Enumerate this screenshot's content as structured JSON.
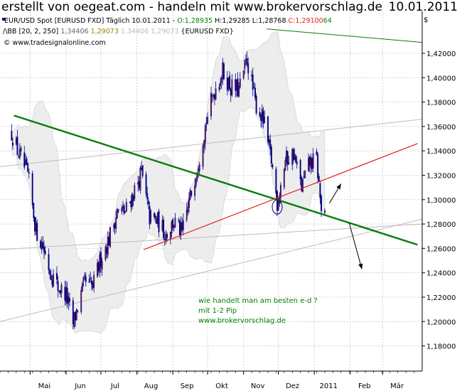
{
  "header": {
    "left": "erstellt von oegeat.com - handeln mit www.brokervorschlag.de",
    "right": "10.01.2011"
  },
  "legend": {
    "line1_symbol": "EUR/USD Spot [EURUSD FXD]  Täglich 10.01.2011 -",
    "line1_open": "O:1,28935",
    "line1_hl": "H:1,29285 L:1,28768",
    "line1_close": "C:1,29100",
    "line1_tail": "64",
    "line2_name": "BB [20, 2, 250]",
    "line2_upper": "1,34406",
    "line2_mid": "1,29073",
    "line2_lower": "1,34406 1,29073",
    "line2_src": "{EURUSD FXD}",
    "line3": "© www.tradesignalonline.com"
  },
  "currency_symbol": "$",
  "notes": [
    "wie handelt man am besten e-d ?",
    "mit 1-2 Pip",
    "www.brokervorschlag.de"
  ],
  "colors": {
    "trend_green": "#0a7a0a",
    "trend_red": "#e02020",
    "candle": "#000080",
    "band_fill": "#e8e8e8",
    "note_text": "#008000"
  },
  "chart_data": {
    "type": "candlestick",
    "title": "EUR/USD Spot [EURUSD FXD] Täglich",
    "x_axis": [
      "Mai",
      "Jun",
      "Jul",
      "Aug",
      "Sep",
      "Okt",
      "Nov",
      "Dez",
      "2011",
      "Feb",
      "Mär"
    ],
    "y_axis_ticks": [
      "1,42000",
      "1,40000",
      "1,38000",
      "1,36000",
      "1,34000",
      "1,32000",
      "1,30000",
      "1,28000",
      "1,26000",
      "1,24000",
      "1,22000",
      "1,20000",
      "1,18000"
    ],
    "ylim": [
      1.17,
      1.43
    ],
    "close_path": [
      [
        "2010-04-15",
        1.355
      ],
      [
        "2010-04-22",
        1.335
      ],
      [
        "2010-04-29",
        1.32
      ],
      [
        "2010-05-06",
        1.275
      ],
      [
        "2010-05-12",
        1.262
      ],
      [
        "2010-05-18",
        1.242
      ],
      [
        "2010-05-25",
        1.228
      ],
      [
        "2010-06-01",
        1.222
      ],
      [
        "2010-06-07",
        1.198
      ],
      [
        "2010-06-11",
        1.212
      ],
      [
        "2010-06-17",
        1.232
      ],
      [
        "2010-06-24",
        1.228
      ],
      [
        "2010-07-01",
        1.252
      ],
      [
        "2010-07-08",
        1.268
      ],
      [
        "2010-07-15",
        1.29
      ],
      [
        "2010-07-22",
        1.29
      ],
      [
        "2010-07-29",
        1.305
      ],
      [
        "2010-08-05",
        1.322
      ],
      [
        "2010-08-12",
        1.285
      ],
      [
        "2010-08-19",
        1.282
      ],
      [
        "2010-08-26",
        1.272
      ],
      [
        "2010-09-02",
        1.282
      ],
      [
        "2010-09-09",
        1.272
      ],
      [
        "2010-09-16",
        1.302
      ],
      [
        "2010-09-23",
        1.332
      ],
      [
        "2010-09-30",
        1.365
      ],
      [
        "2010-10-07",
        1.39
      ],
      [
        "2010-10-14",
        1.405
      ],
      [
        "2010-10-21",
        1.392
      ],
      [
        "2010-10-28",
        1.39
      ],
      [
        "2010-11-04",
        1.415
      ],
      [
        "2010-11-11",
        1.38
      ],
      [
        "2010-11-18",
        1.365
      ],
      [
        "2010-11-25",
        1.332
      ],
      [
        "2010-11-30",
        1.298
      ],
      [
        "2010-12-07",
        1.332
      ],
      [
        "2010-12-14",
        1.338
      ],
      [
        "2010-12-21",
        1.31
      ],
      [
        "2010-12-28",
        1.33
      ],
      [
        "2011-01-03",
        1.332
      ],
      [
        "2011-01-07",
        1.292
      ],
      [
        "2011-01-10",
        1.291
      ]
    ],
    "last_bar": {
      "open": 1.28935,
      "high": 1.29285,
      "low": 1.28768,
      "close": 1.291
    },
    "bollinger": {
      "period": 20,
      "deviation": 2,
      "width": 250
    },
    "trendlines": [
      {
        "name": "resistance",
        "color": "green",
        "from": [
          "2010-04-17",
          1.369
        ],
        "to": [
          "2011-03-31",
          1.263
        ]
      },
      {
        "name": "support",
        "color": "red",
        "from": [
          "2010-08-07",
          1.259
        ],
        "to": [
          "2011-03-31",
          1.346
        ]
      }
    ],
    "projection": [
      {
        "from": [
          "2011-01-14",
          1.297
        ],
        "to": [
          "2011-01-24",
          1.313
        ]
      },
      {
        "from": [
          "2011-01-31",
          1.281
        ],
        "to": [
          "2011-02-11",
          1.243
        ]
      }
    ],
    "grid": true
  }
}
